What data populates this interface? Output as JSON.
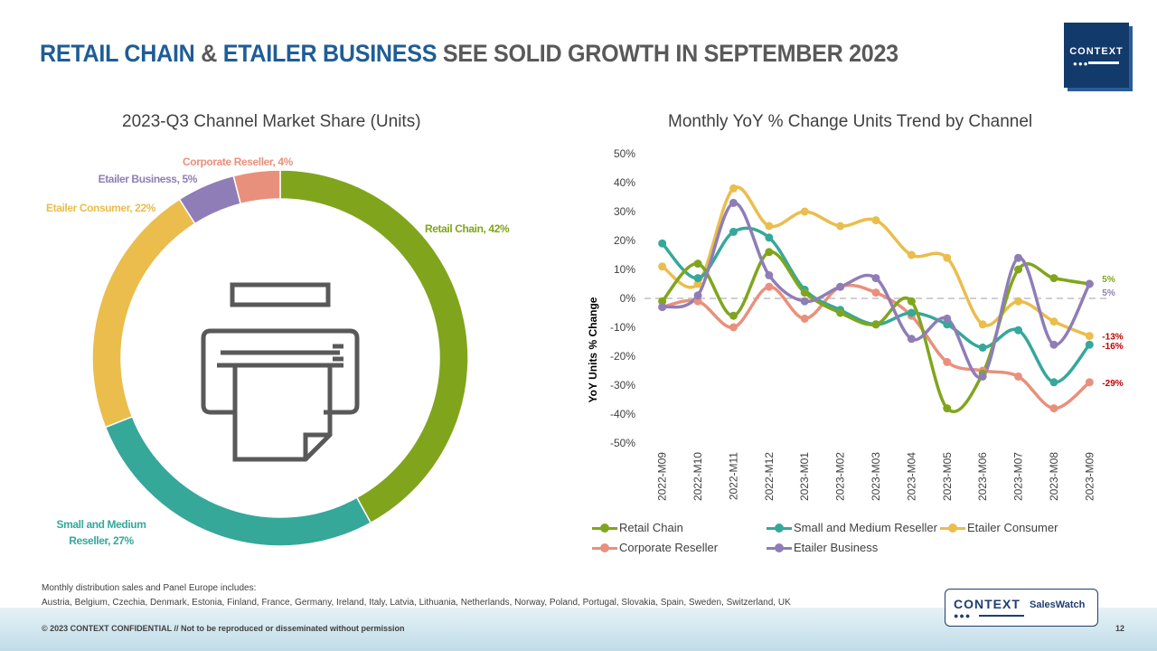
{
  "header": {
    "title_part1": "RETAIL CHAIN",
    "title_part2": " & ",
    "title_part3": "ETAILER BUSINESS",
    "title_part4": " SEE SOLID GROWTH IN SEPTEMBER 2023",
    "logo_text": "CONTEXT"
  },
  "colors": {
    "retail_chain": "#80a51d",
    "smb_reseller": "#35a89a",
    "etailer_consumer": "#eabd4d",
    "corporate_reseller": "#e9907c",
    "etailer_business": "#8f7db7",
    "title_blue": "#1f5d96"
  },
  "chart_data": [
    {
      "type": "pie",
      "subtype": "donut",
      "title": "2023-Q3 Channel Market Share (Units)",
      "center_icon": "printer-icon",
      "slices": [
        {
          "key": "retail_chain",
          "label": "Retail Chain, 42%",
          "value": 42
        },
        {
          "key": "smb_reseller",
          "label": "Small and Medium Reseller, 27%",
          "label_line1": "Small and Medium",
          "label_line2": "Reseller, 27%",
          "value": 27
        },
        {
          "key": "etailer_consumer",
          "label": "Etailer Consumer, 22%",
          "value": 22
        },
        {
          "key": "etailer_business",
          "label": "Etailer Business, 5%",
          "value": 5
        },
        {
          "key": "corporate_reseller",
          "label": "Corporate Reseller, 4%",
          "value": 4
        }
      ]
    },
    {
      "type": "line",
      "title": "Monthly YoY % Change Units Trend by Channel",
      "ylabel": "YoY Units % Change",
      "xlabel": "",
      "ylim": [
        -50,
        50
      ],
      "yticks": [
        "50%",
        "40%",
        "30%",
        "20%",
        "10%",
        "0%",
        "-10%",
        "-20%",
        "-30%",
        "-40%",
        "-50%"
      ],
      "categories": [
        "2022-M09",
        "2022-M10",
        "2022-M11",
        "2022-M12",
        "2023-M01",
        "2023-M02",
        "2023-M03",
        "2023-M04",
        "2023-M05",
        "2023-M06",
        "2023-M07",
        "2023-M08",
        "2023-M09"
      ],
      "series": [
        {
          "key": "retail_chain",
          "name": "Retail Chain",
          "values": [
            -1,
            12,
            -6,
            16,
            2,
            -5,
            -9,
            -1,
            -38,
            -26,
            10,
            7,
            5
          ],
          "end_label": "5%"
        },
        {
          "key": "smb_reseller",
          "name": "Small and Medium Reseller",
          "values": [
            19,
            7,
            23,
            21,
            3,
            -4,
            -9,
            -5,
            -9,
            -17,
            -11,
            -29,
            -16
          ],
          "end_label": "-16%"
        },
        {
          "key": "etailer_consumer",
          "name": "Etailer Consumer",
          "values": [
            11,
            5,
            38,
            25,
            30,
            25,
            27,
            15,
            14,
            -9,
            -1,
            -8,
            -13
          ],
          "end_label": "-13%"
        },
        {
          "key": "corporate_reseller",
          "name": "Corporate Reseller",
          "values": [
            -3,
            -1,
            -10,
            4,
            -7,
            4,
            2,
            -6,
            -22,
            -25,
            -27,
            -38,
            -29
          ],
          "end_label": "-29%"
        },
        {
          "key": "etailer_business",
          "name": "Etailer Business",
          "values": [
            -3,
            1,
            33,
            8,
            -1,
            4,
            7,
            -14,
            -7,
            -27,
            14,
            -16,
            5
          ],
          "end_label": "5%"
        }
      ],
      "zero_line": "dashed",
      "legend_position": "bottom"
    }
  ],
  "footnote": {
    "line1": "Monthly distribution  sales and Panel Europe includes:",
    "line2": "Austria,  Belgium,  Czechia,  Denmark,  Estonia,  Finland,  France,  Germany,  Ireland,  Italy,  Latvia,  Lithuania,  Netherlands,  Norway,  Poland,  Portugal,  Slovakia,  Spain,  Sweden,  Switzerland,  UK"
  },
  "footer": {
    "copyright": "© 2023   CONTEXT CONFIDENTIAL // Not to be reproduced  or disseminated  without permission",
    "page_number": "12",
    "saleswatch_brand": "CONTEXT",
    "saleswatch_product": "SalesWatch"
  }
}
